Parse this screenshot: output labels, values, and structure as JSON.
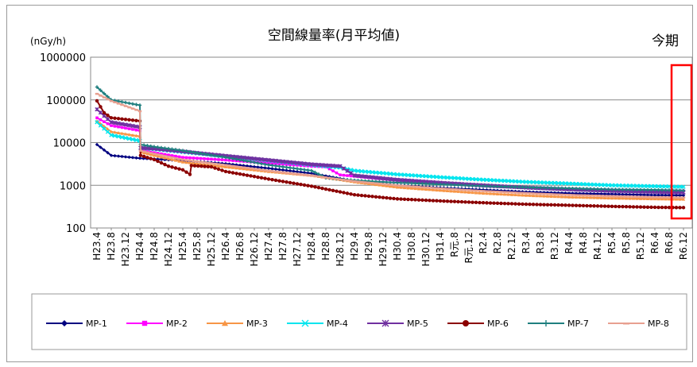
{
  "chart_data": {
    "type": "line",
    "title": "空間線量率(月平均値)",
    "unit_label": "(nGy/h)",
    "annotation": "今期",
    "yscale": "log",
    "ylim": [
      100,
      1000000
    ],
    "y_ticks": [
      "1000000",
      "100000",
      "10000",
      "1000",
      "100"
    ],
    "grid": true,
    "legend_position": "bottom",
    "x_tick_labels": [
      "H23.4",
      "H23.8",
      "H23.12",
      "H24.4",
      "H24.8",
      "H24.12",
      "H25.4",
      "H25.8",
      "H25.12",
      "H26.4",
      "H26.8",
      "H26.12",
      "H27.4",
      "H27.8",
      "H27.12",
      "H28.4",
      "H28.8",
      "H28.12",
      "H29.4",
      "H29.8",
      "H29.12",
      "H30.4",
      "H30.8",
      "H30.12",
      "H31.4",
      "R元.8",
      "R元.12",
      "R2.4",
      "R2.8",
      "R2.12",
      "R3.4",
      "R3.8",
      "R3.12",
      "R4.4",
      "R4.8",
      "R4.12",
      "R5.4",
      "R5.8",
      "R5.12",
      "R6.4",
      "R6.8",
      "R6.12"
    ],
    "series": [
      {
        "name": "MP-1",
        "color": "#000080",
        "marker": "diamond",
        "points": [
          [
            0,
            9000
          ],
          [
            1,
            5000
          ],
          [
            3,
            4300
          ],
          [
            6,
            3800
          ],
          [
            9,
            3200
          ],
          [
            12,
            2500
          ],
          [
            15,
            1900
          ],
          [
            18,
            1250
          ],
          [
            21,
            1000
          ],
          [
            24,
            870
          ],
          [
            27,
            780
          ],
          [
            30,
            700
          ],
          [
            33,
            650
          ],
          [
            36,
            620
          ],
          [
            39,
            590
          ],
          [
            41,
            580
          ]
        ]
      },
      {
        "name": "MP-2",
        "color": "#ff00ff",
        "marker": "square",
        "points": [
          [
            0,
            38000
          ],
          [
            1,
            25000
          ],
          [
            3,
            19000
          ],
          [
            3.05,
            6500
          ],
          [
            4,
            5800
          ],
          [
            6,
            4500
          ],
          [
            9,
            3900
          ],
          [
            12,
            3300
          ],
          [
            15,
            2800
          ],
          [
            16,
            2700
          ],
          [
            17,
            1750
          ],
          [
            21,
            1300
          ],
          [
            24,
            1100
          ],
          [
            27,
            960
          ],
          [
            30,
            880
          ],
          [
            33,
            820
          ],
          [
            36,
            780
          ],
          [
            39,
            750
          ],
          [
            41,
            740
          ]
        ]
      },
      {
        "name": "MP-3",
        "color": "#f79646",
        "marker": "triangle",
        "points": [
          [
            0,
            32000
          ],
          [
            1,
            18000
          ],
          [
            3,
            14000
          ],
          [
            3.05,
            6000
          ],
          [
            4,
            5000
          ],
          [
            6,
            3500
          ],
          [
            9,
            2700
          ],
          [
            12,
            2100
          ],
          [
            15,
            1700
          ],
          [
            18,
            1200
          ],
          [
            21,
            900
          ],
          [
            24,
            760
          ],
          [
            27,
            650
          ],
          [
            30,
            580
          ],
          [
            33,
            530
          ],
          [
            36,
            500
          ],
          [
            39,
            480
          ],
          [
            41,
            470
          ]
        ]
      },
      {
        "name": "MP-4",
        "color": "#00e5ee",
        "marker": "x",
        "points": [
          [
            0,
            30000
          ],
          [
            1,
            15000
          ],
          [
            3,
            11000
          ],
          [
            3.05,
            7500
          ],
          [
            4,
            7000
          ],
          [
            6,
            6000
          ],
          [
            9,
            4800
          ],
          [
            12,
            3800
          ],
          [
            15,
            3000
          ],
          [
            17,
            2600
          ],
          [
            18,
            2200
          ],
          [
            21,
            1800
          ],
          [
            24,
            1550
          ],
          [
            27,
            1350
          ],
          [
            30,
            1200
          ],
          [
            33,
            1100
          ],
          [
            36,
            1000
          ],
          [
            39,
            950
          ],
          [
            41,
            920
          ]
        ]
      },
      {
        "name": "MP-5",
        "color": "#7030a0",
        "marker": "star",
        "points": [
          [
            0,
            60000
          ],
          [
            1,
            30000
          ],
          [
            3,
            23000
          ],
          [
            3.05,
            7500
          ],
          [
            4,
            7200
          ],
          [
            6,
            6200
          ],
          [
            9,
            4900
          ],
          [
            12,
            3900
          ],
          [
            15,
            3100
          ],
          [
            17,
            2800
          ],
          [
            18,
            1700
          ],
          [
            21,
            1350
          ],
          [
            24,
            1150
          ],
          [
            27,
            1000
          ],
          [
            30,
            880
          ],
          [
            33,
            800
          ],
          [
            36,
            740
          ],
          [
            39,
            700
          ],
          [
            41,
            680
          ]
        ]
      },
      {
        "name": "MP-6",
        "color": "#8b0000",
        "marker": "circle",
        "points": [
          [
            0,
            95000
          ],
          [
            0.5,
            50000
          ],
          [
            1,
            38000
          ],
          [
            3,
            32000
          ],
          [
            3.05,
            5000
          ],
          [
            4,
            4000
          ],
          [
            5,
            2800
          ],
          [
            6,
            2300
          ],
          [
            6.5,
            1800
          ],
          [
            6.6,
            2900
          ],
          [
            8,
            2700
          ],
          [
            9,
            2100
          ],
          [
            12,
            1400
          ],
          [
            15,
            950
          ],
          [
            18,
            600
          ],
          [
            21,
            480
          ],
          [
            24,
            430
          ],
          [
            27,
            390
          ],
          [
            30,
            360
          ],
          [
            33,
            340
          ],
          [
            36,
            320
          ],
          [
            39,
            305
          ],
          [
            41,
            300
          ]
        ]
      },
      {
        "name": "MP-7",
        "color": "#1f7f7f",
        "marker": "plus",
        "points": [
          [
            0,
            200000
          ],
          [
            1,
            100000
          ],
          [
            3,
            75000
          ],
          [
            3.05,
            9000
          ],
          [
            4,
            8000
          ],
          [
            6,
            6500
          ],
          [
            9,
            4500
          ],
          [
            12,
            3000
          ],
          [
            15,
            2200
          ],
          [
            16,
            1500
          ],
          [
            18,
            1300
          ],
          [
            21,
            1150
          ],
          [
            24,
            1050
          ],
          [
            27,
            950
          ],
          [
            30,
            900
          ],
          [
            33,
            850
          ],
          [
            36,
            800
          ],
          [
            39,
            780
          ],
          [
            41,
            760
          ]
        ]
      },
      {
        "name": "MP-8",
        "color": "#e8a090",
        "marker": "dash",
        "points": [
          [
            0,
            140000
          ],
          [
            1,
            95000
          ],
          [
            3,
            55000
          ],
          [
            3.05,
            6500
          ],
          [
            4,
            5500
          ],
          [
            6,
            4000
          ],
          [
            9,
            3000
          ],
          [
            12,
            2200
          ],
          [
            15,
            1700
          ],
          [
            18,
            1250
          ],
          [
            21,
            1000
          ],
          [
            24,
            850
          ],
          [
            27,
            740
          ],
          [
            30,
            660
          ],
          [
            33,
            600
          ],
          [
            36,
            560
          ],
          [
            39,
            530
          ],
          [
            41,
            520
          ]
        ]
      }
    ]
  }
}
